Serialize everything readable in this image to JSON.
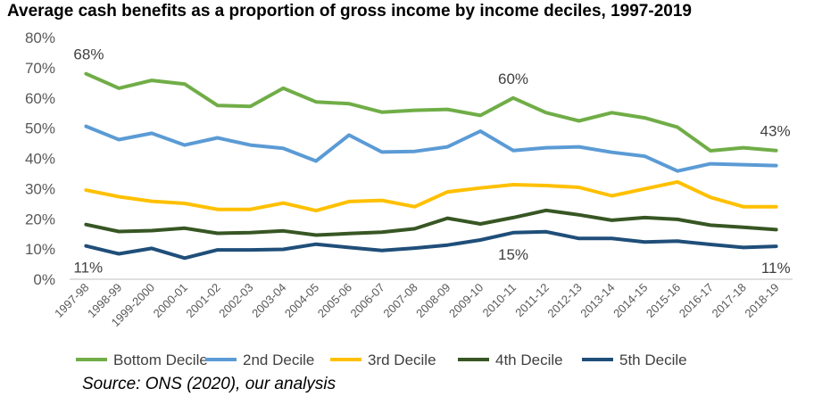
{
  "chart_data": {
    "type": "line",
    "title": "Average cash benefits as a proportion of gross income by income deciles, 1997-2019",
    "source": "Source: ONS (2020), our analysis",
    "xlabel": "",
    "ylabel": "",
    "ylim": [
      0,
      80
    ],
    "yticks": [
      "0%",
      "10%",
      "20%",
      "30%",
      "40%",
      "50%",
      "60%",
      "70%",
      "80%"
    ],
    "grid": false,
    "legend_position": "bottom",
    "categories": [
      "1997-98",
      "1998-99",
      "1999-2000",
      "2000-01",
      "2001-02",
      "2002-03",
      "2003-04",
      "2004-05",
      "2005-06",
      "2006-07",
      "2007-08",
      "2008-09",
      "2009-10",
      "2010-11",
      "2011-12",
      "2012-13",
      "2013-14",
      "2014-15",
      "2015-16",
      "2016-17",
      "2017-18",
      "2018-19"
    ],
    "series": [
      {
        "name": "Bottom Decile",
        "color": "#70AD47",
        "values": [
          68,
          63.2,
          65.8,
          64.6,
          57.5,
          57.2,
          63.2,
          58.7,
          58.1,
          55.3,
          55.9,
          56.2,
          54.2,
          60.0,
          55.1,
          52.4,
          55.1,
          53.4,
          50.3,
          42.5,
          43.5,
          42.6
        ]
      },
      {
        "name": "2nd Decile",
        "color": "#5B9BD5",
        "values": [
          50.6,
          46.2,
          48.3,
          44.4,
          46.8,
          44.4,
          43.3,
          39.1,
          47.7,
          42.1,
          42.3,
          43.8,
          49.0,
          42.6,
          43.5,
          43.8,
          42.0,
          40.7,
          35.8,
          38.2,
          37.9,
          37.6
        ]
      },
      {
        "name": "3rd Decile",
        "color": "#FFC000",
        "values": [
          29.5,
          27.3,
          25.8,
          25.1,
          23.1,
          23.1,
          25.2,
          22.7,
          25.7,
          26.1,
          24.0,
          28.9,
          30.2,
          31.3,
          31.0,
          30.4,
          27.6,
          29.9,
          32.2,
          27.1,
          24.0,
          24.0
        ]
      },
      {
        "name": "4th Decile",
        "color": "#375623",
        "values": [
          18.1,
          15.8,
          16.1,
          16.9,
          15.2,
          15.4,
          16.0,
          14.6,
          15.1,
          15.6,
          16.7,
          20.2,
          18.3,
          20.4,
          22.8,
          21.3,
          19.5,
          20.4,
          19.8,
          17.9,
          17.2,
          16.4
        ]
      },
      {
        "name": "5th Decile",
        "color": "#1F4E79",
        "values": [
          11.0,
          8.4,
          10.2,
          7.0,
          9.7,
          9.7,
          9.9,
          11.6,
          10.5,
          9.5,
          10.3,
          11.3,
          13.0,
          15.4,
          15.7,
          13.5,
          13.5,
          12.3,
          12.6,
          11.5,
          10.5,
          10.9
        ]
      }
    ],
    "annotations": [
      {
        "text": "68%",
        "series": 0,
        "index": 0
      },
      {
        "text": "60%",
        "series": 0,
        "index": 13
      },
      {
        "text": "43%",
        "series": 0,
        "index": 21
      },
      {
        "text": "11%",
        "series": 4,
        "index": 0
      },
      {
        "text": "15%",
        "series": 4,
        "index": 13
      },
      {
        "text": "11%",
        "series": 4,
        "index": 21
      }
    ]
  }
}
